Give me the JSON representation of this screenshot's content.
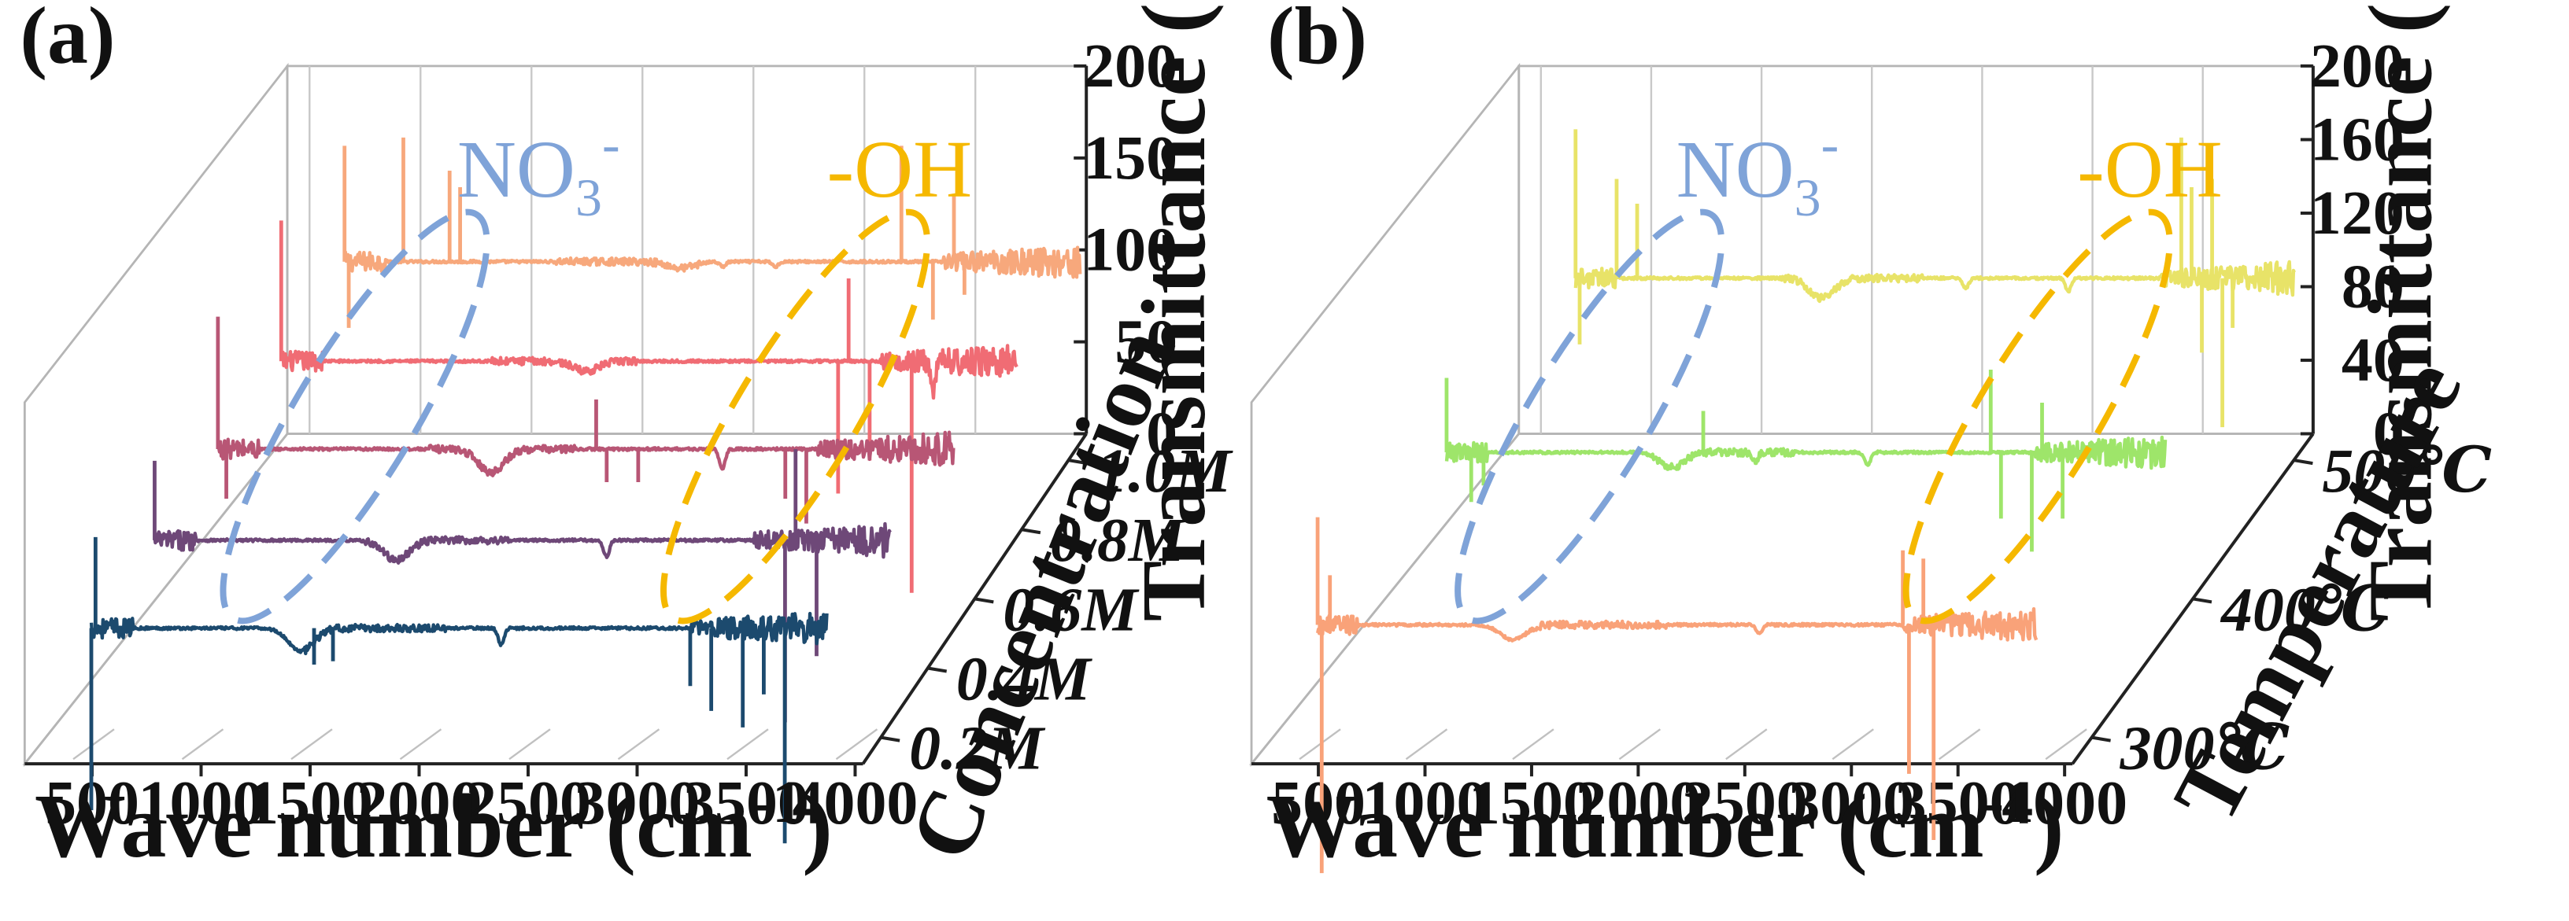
{
  "chart_data": [
    {
      "panel_label": "(a)",
      "type": "line",
      "subtype": "3d-waterfall",
      "xlabel": "Wave number (cm",
      "xlabel_sup": "-1",
      "xlabel_close": ")",
      "ylabel": "Transmittance (%)",
      "zlabel": "Concentration",
      "x_ticks": [
        "500",
        "1000",
        "1500",
        "2000",
        "2500",
        "3000",
        "3500",
        "4000"
      ],
      "xlim": [
        400,
        4000
      ],
      "y_ticks": [
        "0",
        "50",
        "100",
        "150",
        "200"
      ],
      "ylim": [
        0,
        200
      ],
      "z_ticks": [
        "0.2M",
        "0.4M",
        "0.6M",
        "0.8M",
        "1.0M"
      ],
      "series": [
        {
          "name": "0.2M",
          "color": "#F7A87C",
          "baseline": 85,
          "no3_x": 2100,
          "no3_depth": 4,
          "features": [
            [
              2300,
              -3
            ],
            [
              2550,
              -3
            ]
          ],
          "spikes": [
            [
              500,
              70
            ],
            [
              520,
              -40
            ],
            [
              780,
              75
            ],
            [
              1000,
              55
            ],
            [
              1050,
              45
            ],
            [
              3150,
              70
            ],
            [
              3300,
              -35
            ],
            [
              3400,
              40
            ],
            [
              3450,
              -20
            ]
          ]
        },
        {
          "name": "0.4M",
          "color": "#F06C74",
          "baseline": 70,
          "no3_x": 1950,
          "no3_depth": 6,
          "features": [
            [
              3600,
              -16
            ]
          ],
          "spikes": [
            [
              500,
              85
            ],
            [
              3150,
              -80
            ],
            [
              3200,
              50
            ],
            [
              3300,
              -60
            ],
            [
              3500,
              -140
            ]
          ]
        },
        {
          "name": "0.6M",
          "color": "#B85675",
          "baseline": 62,
          "no3_x": 1800,
          "no3_depth": 14,
          "features": [
            [
              2900,
              -12
            ]
          ],
          "spikes": [
            [
              500,
              80
            ],
            [
              540,
              -30
            ],
            [
              2300,
              30
            ],
            [
              2350,
              -20
            ],
            [
              2500,
              -20
            ],
            [
              3200,
              -30
            ],
            [
              3300,
              -45
            ]
          ]
        },
        {
          "name": "0.8M",
          "color": "#6E4878",
          "baseline": 52,
          "no3_x": 1650,
          "no3_depth": 12,
          "features": [
            [
              2650,
              -10
            ]
          ],
          "spikes": [
            [
              500,
              48
            ],
            [
              3500,
              -110
            ],
            [
              3550,
              55
            ],
            [
              3650,
              -70
            ]
          ]
        },
        {
          "name": "1.0M",
          "color": "#1C4A6E",
          "baseline": 44,
          "no3_x": 1500,
          "no3_depth": 14,
          "features": [
            [
              2450,
              -10
            ]
          ],
          "spikes": [
            [
              500,
              -110
            ],
            [
              520,
              55
            ],
            [
              1560,
              -22
            ],
            [
              1650,
              -20
            ],
            [
              3350,
              -35
            ],
            [
              3450,
              -50
            ],
            [
              3600,
              -60
            ],
            [
              3700,
              -40
            ],
            [
              3800,
              -130
            ]
          ]
        }
      ],
      "annotations": [
        {
          "text": "NO",
          "sub": "3",
          "sup": "-",
          "color": "#7FA3D8"
        },
        {
          "text": "-OH",
          "color": "#F5B800"
        }
      ]
    },
    {
      "panel_label": "(b)",
      "type": "line",
      "subtype": "3d-waterfall",
      "xlabel": "Wave number (cm",
      "xlabel_sup": "-1",
      "xlabel_close": ")",
      "ylabel": "Transmittance (%)",
      "zlabel": "Temperature",
      "x_ticks": [
        "500",
        "1000",
        "1500",
        "2000",
        "2500",
        "3000",
        "3500",
        "4000"
      ],
      "xlim": [
        400,
        4000
      ],
      "y_ticks": [
        "0",
        "40",
        "80",
        "120",
        "160",
        "200"
      ],
      "ylim": [
        0,
        200
      ],
      "z_ticks": [
        "300℃",
        "400℃",
        "500℃"
      ],
      "series": [
        {
          "name": "300℃",
          "color": "#E8E368",
          "baseline": 75,
          "no3_x": 1700,
          "no3_depth": 12,
          "features": [
            [
              2400,
              -6
            ],
            [
              2900,
              -8
            ]
          ],
          "spikes": [
            [
              500,
              90
            ],
            [
              520,
              -40
            ],
            [
              700,
              60
            ],
            [
              800,
              45
            ],
            [
              3450,
              85
            ],
            [
              3500,
              55
            ],
            [
              3550,
              -45
            ],
            [
              3600,
              60
            ],
            [
              3650,
              -90
            ],
            [
              3700,
              -30
            ]
          ]
        },
        {
          "name": "400℃",
          "color": "#9EE56A",
          "baseline": 60,
          "no3_x": 1600,
          "no3_depth": 9,
          "features": [
            [
              2000,
              -6
            ],
            [
              2550,
              -8
            ]
          ],
          "spikes": [
            [
              500,
              45
            ],
            [
              620,
              -30
            ],
            [
              680,
              -20
            ],
            [
              1750,
              25
            ],
            [
              3150,
              50
            ],
            [
              3200,
              -40
            ],
            [
              3350,
              -60
            ],
            [
              3400,
              30
            ],
            [
              3500,
              -40
            ]
          ]
        },
        {
          "name": "500℃",
          "color": "#F9A279",
          "baseline": 46,
          "no3_x": 1450,
          "no3_depth": 9,
          "features": [
            [
              2650,
              -5
            ]
          ],
          "spikes": [
            [
              500,
              65
            ],
            [
              520,
              -150
            ],
            [
              560,
              30
            ],
            [
              3350,
              45
            ],
            [
              3380,
              -90
            ],
            [
              3450,
              40
            ],
            [
              3500,
              -130
            ]
          ]
        }
      ],
      "annotations": [
        {
          "text": "NO",
          "sub": "3",
          "sup": "-",
          "color": "#7FA3D8"
        },
        {
          "text": "-OH",
          "color": "#F5B800"
        }
      ]
    }
  ]
}
